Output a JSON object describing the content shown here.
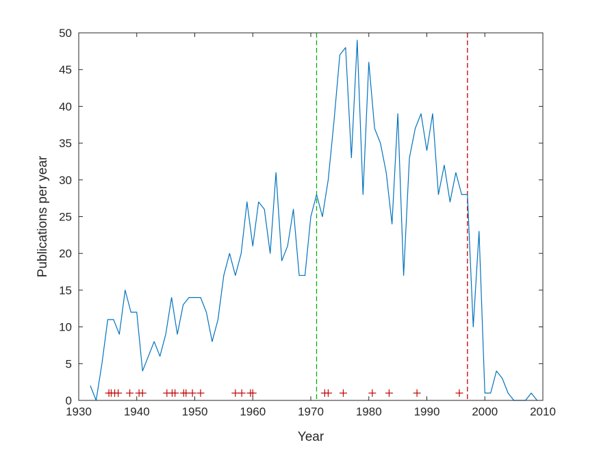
{
  "chart_data": {
    "type": "line",
    "title": "",
    "xlabel": "Year",
    "ylabel": "Publications per year",
    "xlim": [
      1930,
      2010
    ],
    "ylim": [
      0,
      50
    ],
    "xticks": [
      1930,
      1940,
      1950,
      1960,
      1970,
      1980,
      1990,
      2000,
      2010
    ],
    "yticks": [
      0,
      5,
      10,
      15,
      20,
      25,
      30,
      35,
      40,
      45,
      50
    ],
    "grid": false,
    "series": [
      {
        "type": "line",
        "color": "#0072bd",
        "x": [
          1932,
          1933,
          1934,
          1935,
          1936,
          1937,
          1938,
          1939,
          1940,
          1941,
          1942,
          1943,
          1944,
          1945,
          1946,
          1947,
          1948,
          1949,
          1950,
          1951,
          1952,
          1953,
          1954,
          1955,
          1956,
          1957,
          1958,
          1959,
          1960,
          1961,
          1962,
          1963,
          1964,
          1965,
          1966,
          1967,
          1968,
          1969,
          1970,
          1971,
          1972,
          1973,
          1974,
          1975,
          1976,
          1977,
          1978,
          1979,
          1980,
          1981,
          1982,
          1983,
          1984,
          1985,
          1986,
          1987,
          1988,
          1989,
          1990,
          1991,
          1992,
          1993,
          1994,
          1995,
          1996,
          1997,
          1998,
          1999,
          2000,
          2001,
          2002,
          2003,
          2004,
          2005,
          2006,
          2007,
          2008,
          2009
        ],
        "y": [
          2,
          0,
          5,
          11,
          11,
          9,
          15,
          12,
          12,
          4,
          6,
          8,
          6,
          9,
          14,
          9,
          13,
          14,
          14,
          14,
          12,
          8,
          11,
          17,
          20,
          17,
          20,
          27,
          21,
          27,
          26,
          20,
          31,
          19,
          21,
          26,
          17,
          17,
          25,
          28,
          25,
          30,
          38,
          47,
          48,
          33,
          49,
          28,
          46,
          37,
          35,
          31,
          24,
          39,
          17,
          33,
          37,
          39,
          34,
          39,
          28,
          32,
          27,
          31,
          28,
          28,
          10,
          23,
          1,
          1,
          4,
          3,
          1,
          0,
          0,
          0,
          1,
          0
        ]
      },
      {
        "type": "markers",
        "marker": "+",
        "color": "#c00000",
        "y_value": 1,
        "x": [
          1935.2,
          1935.6,
          1936.2,
          1936.8,
          1938.8,
          1940.4,
          1941.0,
          1945.2,
          1946.1,
          1946.6,
          1948.1,
          1948.5,
          1949.6,
          1951.0,
          1957.0,
          1958.1,
          1959.6,
          1960.0,
          1972.4,
          1973.0,
          1975.6,
          1980.6,
          1983.5,
          1988.3,
          1995.6
        ]
      }
    ],
    "reference_lines": [
      {
        "orientation": "vertical",
        "x": 1971,
        "color": "#00b000",
        "style": "dashed"
      },
      {
        "orientation": "vertical",
        "x": 1997,
        "color": "#c00000",
        "style": "dashed"
      }
    ]
  }
}
